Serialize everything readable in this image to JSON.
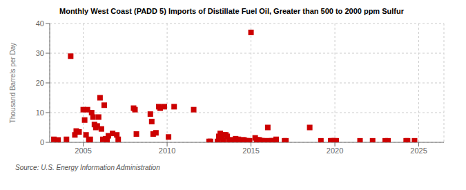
{
  "chart_data": {
    "type": "scatter",
    "title": "Monthly West Coast (PADD 5) Imports of Distillate Fuel Oil, Greater than 500 to 2000 ppm Sulfur",
    "ylabel": "Thousand Barrels per Day",
    "annotations": [
      "Source: U.S. Energy Information Administration"
    ],
    "color": "#cc0000",
    "marker": "square",
    "grid": true,
    "xlim": [
      2003.0,
      2026.5
    ],
    "xticks": [
      2005,
      2010,
      2015,
      2020,
      2025
    ],
    "ylim": [
      0,
      40
    ],
    "yticks": [
      0,
      10,
      20,
      30,
      40
    ],
    "x": [
      2003.25,
      2003.5,
      2004.0,
      2004.25,
      2004.5,
      2004.583,
      2004.75,
      2005.0,
      2005.083,
      2005.167,
      2005.25,
      2005.333,
      2005.417,
      2005.5,
      2005.583,
      2005.667,
      2005.75,
      2005.833,
      2005.917,
      2006.0,
      2006.083,
      2006.167,
      2006.25,
      2006.333,
      2006.417,
      2006.5,
      2006.75,
      2007.0,
      2007.083,
      2008.0,
      2008.083,
      2008.167,
      2009.0,
      2009.083,
      2009.167,
      2009.333,
      2009.5,
      2009.583,
      2009.833,
      2010.083,
      2010.417,
      2011.583,
      2012.5,
      2012.583,
      2013.0,
      2013.083,
      2013.167,
      2013.25,
      2013.333,
      2013.417,
      2013.5,
      2013.583,
      2013.667,
      2013.75,
      2014.0,
      2014.083,
      2014.167,
      2014.25,
      2014.333,
      2014.417,
      2014.5,
      2014.583,
      2014.667,
      2014.75,
      2014.833,
      2014.917,
      2015.0,
      2015.25,
      2015.333,
      2015.417,
      2015.5,
      2015.583,
      2015.667,
      2015.75,
      2015.833,
      2016.0,
      2016.083,
      2016.167,
      2016.25,
      2016.333,
      2016.417,
      2016.5,
      2017.0,
      2017.083,
      2018.5,
      2019.167,
      2019.75,
      2019.833,
      2019.917,
      2020.0,
      2020.083,
      2021.5,
      2022.25,
      2023.0,
      2023.167,
      2024.25,
      2024.333,
      2024.75
    ],
    "values": [
      1.0,
      0.8,
      1.0,
      29.0,
      2.5,
      3.8,
      3.5,
      11.0,
      7.5,
      2.5,
      11.0,
      0.8,
      1.0,
      10.0,
      8.5,
      6.0,
      5.0,
      5.5,
      8.5,
      15.0,
      4.5,
      1.0,
      12.5,
      1.2,
      0.5,
      2.2,
      3.0,
      2.5,
      1.0,
      11.5,
      11.0,
      2.8,
      9.5,
      7.0,
      2.8,
      3.2,
      12.0,
      11.5,
      12.0,
      1.8,
      12.0,
      11.0,
      0.3,
      0.3,
      0.3,
      2.0,
      3.0,
      1.5,
      0.5,
      2.5,
      2.5,
      2.0,
      0.8,
      0.8,
      0.8,
      1.2,
      0.5,
      1.0,
      0.5,
      0.5,
      0.8,
      0.8,
      0.5,
      0.5,
      0.5,
      0.5,
      37.0,
      1.5,
      0.8,
      0.8,
      0.8,
      0.5,
      0.5,
      0.5,
      0.5,
      5.0,
      0.5,
      0.5,
      0.5,
      0.5,
      0.5,
      1.0,
      0.5,
      0.5,
      5.0,
      0.5,
      0.5,
      0.5,
      0.5,
      0.5,
      0.5,
      0.5,
      0.5,
      0.5,
      0.5,
      0.5,
      0.5,
      0.5
    ]
  }
}
